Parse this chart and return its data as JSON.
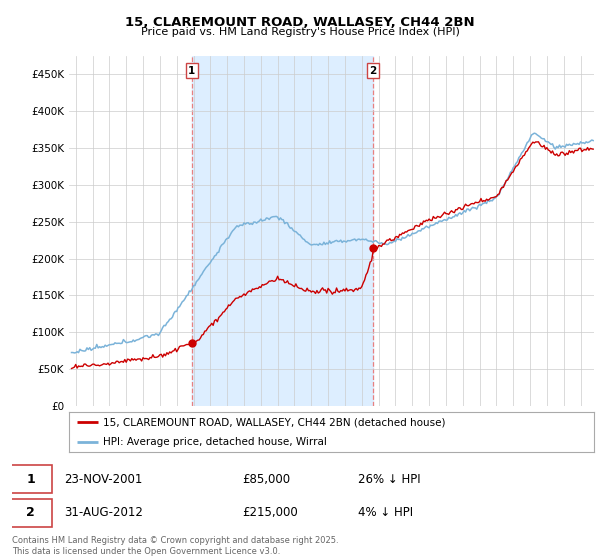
{
  "title": "15, CLAREMOUNT ROAD, WALLASEY, CH44 2BN",
  "subtitle": "Price paid vs. HM Land Registry's House Price Index (HPI)",
  "ylabel_ticks": [
    "£0",
    "£50K",
    "£100K",
    "£150K",
    "£200K",
    "£250K",
    "£300K",
    "£350K",
    "£400K",
    "£450K"
  ],
  "ytick_values": [
    0,
    50000,
    100000,
    150000,
    200000,
    250000,
    300000,
    350000,
    400000,
    450000
  ],
  "ylim": [
    0,
    475000
  ],
  "xlim_start": 1994.6,
  "xlim_end": 2025.8,
  "transaction1_x": 2001.9,
  "transaction1_y": 85000,
  "transaction2_x": 2012.67,
  "transaction2_y": 215000,
  "vline_color": "#e88080",
  "shade_color": "#ddeeff",
  "red_color": "#cc0000",
  "blue_color": "#7bb3d9",
  "legend_red_label": "15, CLAREMOUNT ROAD, WALLASEY, CH44 2BN (detached house)",
  "legend_blue_label": "HPI: Average price, detached house, Wirral",
  "table_row1": [
    "1",
    "23-NOV-2001",
    "£85,000",
    "26% ↓ HPI"
  ],
  "table_row2": [
    "2",
    "31-AUG-2012",
    "£215,000",
    "4% ↓ HPI"
  ],
  "footnote": "Contains HM Land Registry data © Crown copyright and database right 2025.\nThis data is licensed under the Open Government Licence v3.0.",
  "background_color": "#ffffff",
  "grid_color": "#cccccc",
  "box_edge_color": "#cc4444"
}
